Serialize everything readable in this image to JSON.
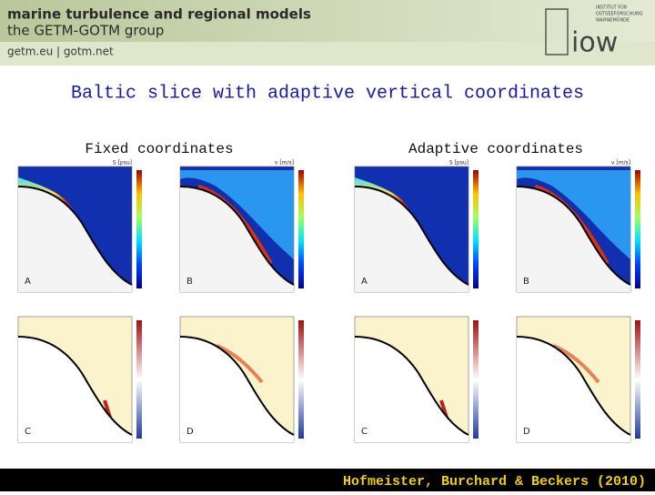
{
  "header": {
    "title": "marine turbulence and regional models",
    "subtitle": "the GETM-GOTM group",
    "links": "getm.eu  |  gotm.net",
    "logo": "iow",
    "institute": [
      "INSTITUT FÜR",
      "OSTSEEFORSCHUNG",
      "WARNEMÜNDE"
    ]
  },
  "slide": {
    "title": "Baltic slice with adaptive vertical coordinates",
    "columns": [
      "Fixed coordinates",
      "Adaptive coordinates"
    ],
    "panels": [
      {
        "label": "A",
        "title": "S [psu]"
      },
      {
        "label": "B",
        "title": "v [m/s]"
      },
      {
        "label": "C"
      },
      {
        "label": "D"
      },
      {
        "label": "A",
        "title": "S [psu]"
      },
      {
        "label": "B",
        "title": "v [m/s]"
      },
      {
        "label": "C"
      },
      {
        "label": "D"
      }
    ],
    "citation": "Hofmeister, Burchard & Beckers (2010)"
  }
}
